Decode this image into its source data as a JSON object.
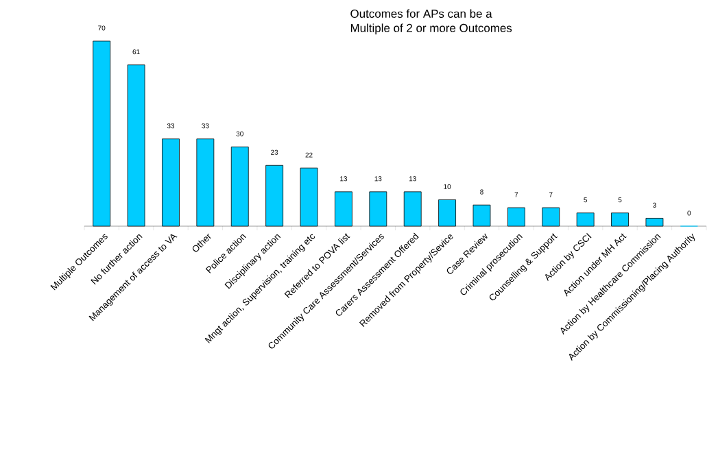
{
  "chart_data": {
    "type": "bar",
    "title": "Outcomes for APs can be a",
    "subtitle": "Multiple of 2 or more Outcomes",
    "categories": [
      "Multiple Outcomes",
      "No further action",
      "Management of access to VA",
      "Other",
      "Police action",
      "Disciplinary action",
      "Mngt action, Supervision, training etc",
      "Referred to POVA list",
      "Community Care Assessment/Services",
      "Carers Assessment Offered",
      "Removed from Property/Sevice",
      "Case Review",
      "Criminal prosecution",
      "Counselling & Support",
      "Action by CSCI",
      "Action under MH Act",
      "Action by Healthcare Commission",
      "Action by Commissioning/Placing Authority"
    ],
    "values": [
      70,
      61,
      33,
      33,
      30,
      23,
      22,
      13,
      13,
      13,
      10,
      8,
      7,
      7,
      5,
      5,
      3,
      0
    ],
    "color": "#00ccff",
    "data_labels": true
  }
}
